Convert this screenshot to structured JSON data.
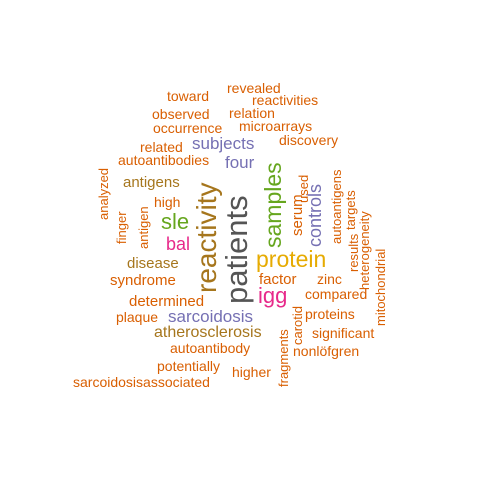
{
  "words": {
    "patients": "patients",
    "reactivity": "reactivity",
    "samples": "samples",
    "protein": "protein",
    "sle": "sle",
    "igg": "igg",
    "controls": "controls",
    "bal": "bal",
    "subjects": "subjects",
    "four": "four",
    "sarcoidosis": "sarcoidosis",
    "atherosclerosis": "atherosclerosis",
    "antigens": "antigens",
    "disease": "disease",
    "syndrome": "syndrome",
    "determined": "determined",
    "serum": "serum",
    "factor": "factor",
    "compared": "compared",
    "toward": "toward",
    "revealed": "revealed",
    "reactivities": "reactivities",
    "observed": "observed",
    "relation": "relation",
    "occurrence": "occurrence",
    "microarrays": "microarrays",
    "related": "related",
    "discovery": "discovery",
    "autoantibodies": "autoantibodies",
    "used": "used",
    "autoantigens": "autoantigens",
    "targets": "targets",
    "results": "results",
    "heterogeneity": "heterogeneity",
    "mitochondrial": "mitochondrial",
    "analyzed": "analyzed",
    "finger": "finger",
    "antigen": "antigen",
    "high": "high",
    "zinc": "zinc",
    "plaque": "plaque",
    "carotid": "carotid",
    "proteins": "proteins",
    "fragments": "fragments",
    "significant": "significant",
    "autoantibody": "autoantibody",
    "nonlofgren": "nonlöfgren",
    "potentially": "potentially",
    "higher": "higher",
    "sarcoidosisassociated": "sarcoidosisassociated"
  }
}
